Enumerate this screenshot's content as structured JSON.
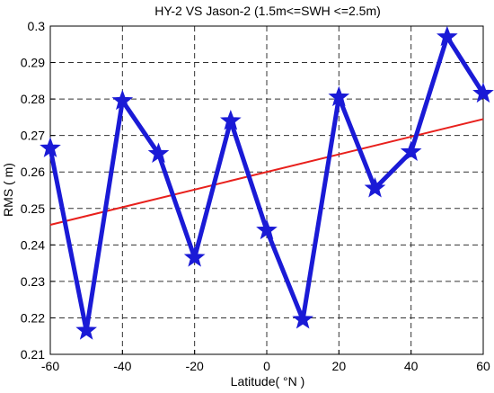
{
  "chart_data": {
    "type": "line",
    "title": "HY-2 VS Jason-2  (1.5m<=SWH <=2.5m)",
    "xlabel": "Latitude( °N )",
    "ylabel": "RMS ( m)",
    "xlim": [
      -60,
      60
    ],
    "ylim": [
      0.21,
      0.3
    ],
    "xticks": [
      "-60",
      "-40",
      "-20",
      "0",
      "20",
      "40",
      "60"
    ],
    "yticks": [
      "0.21",
      "0.22",
      "0.23",
      "0.24",
      "0.25",
      "0.26",
      "0.27",
      "0.28",
      "0.29",
      "0.3"
    ],
    "grid": true,
    "series": [
      {
        "marker": "star",
        "color": "#1a1ad6",
        "x": [
          -60,
          -50,
          -40,
          -30,
          -20,
          -10,
          0,
          10,
          20,
          30,
          40,
          50,
          60
        ],
        "y": [
          0.2665,
          0.2165,
          0.2795,
          0.265,
          0.2365,
          0.274,
          0.244,
          0.2195,
          0.2805,
          0.2555,
          0.2655,
          0.297,
          0.2815
        ]
      },
      {
        "style": "trend-line",
        "color": "#e8201c",
        "x": [
          -60,
          60
        ],
        "y": [
          0.2455,
          0.2745
        ]
      }
    ]
  }
}
